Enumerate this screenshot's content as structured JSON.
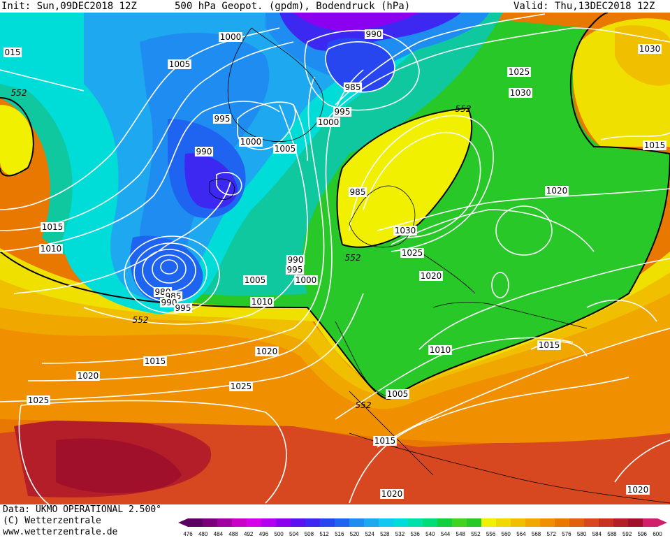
{
  "header": {
    "init": "Init: Sun,09DEC2018 12Z",
    "title": "500 hPa Geopot. (gpdm), Bodendruck (hPa)",
    "valid": "Valid: Thu,13DEC2018 12Z"
  },
  "footer": {
    "data_source": "Data: UKMO OPERATIONAL 2.500°",
    "copyright": "(C) Wetterzentrale",
    "url": "www.wetterzentrale.de"
  },
  "colorbar": {
    "ticks": [
      "476",
      "480",
      "484",
      "488",
      "492",
      "496",
      "500",
      "504",
      "508",
      "512",
      "516",
      "520",
      "524",
      "528",
      "532",
      "536",
      "540",
      "544",
      "548",
      "552",
      "556",
      "560",
      "564",
      "568",
      "572",
      "576",
      "580",
      "584",
      "588",
      "592",
      "596",
      "600"
    ],
    "colors": [
      "#5a0060",
      "#7a007a",
      "#a000a0",
      "#c800c8",
      "#d400e8",
      "#b400f0",
      "#8c00f0",
      "#5a10f0",
      "#3c28f0",
      "#2846f0",
      "#1e64f0",
      "#1e8cf0",
      "#1ea8f0",
      "#10c8f0",
      "#00dcd8",
      "#00e0a8",
      "#00dc78",
      "#10d040",
      "#40d420",
      "#28c828",
      "#f0f000",
      "#f0d800",
      "#f0c000",
      "#f0a800",
      "#f09000",
      "#e87800",
      "#e06010",
      "#d84820",
      "#c83020",
      "#b41e28",
      "#a0102a",
      "#d0206c"
    ]
  },
  "contour_labels": [
    {
      "text": "1000"
    },
    {
      "text": "990"
    },
    {
      "text": "015"
    },
    {
      "text": "1005"
    },
    {
      "text": "985"
    },
    {
      "text": "552"
    },
    {
      "text": "995"
    },
    {
      "text": "1000"
    },
    {
      "text": "552"
    },
    {
      "text": "1025"
    },
    {
      "text": "1030"
    },
    {
      "text": "1030"
    },
    {
      "text": "995"
    },
    {
      "text": "1000"
    },
    {
      "text": "1005"
    },
    {
      "text": "990"
    },
    {
      "text": "1015"
    },
    {
      "text": "1020"
    },
    {
      "text": "985"
    },
    {
      "text": "1030"
    },
    {
      "text": "1015"
    },
    {
      "text": "1025"
    },
    {
      "text": "552"
    },
    {
      "text": "990"
    },
    {
      "text": "1010"
    },
    {
      "text": "995"
    },
    {
      "text": "1000"
    },
    {
      "text": "1020"
    },
    {
      "text": "1005"
    },
    {
      "text": "980"
    },
    {
      "text": "985"
    },
    {
      "text": "990"
    },
    {
      "text": "995"
    },
    {
      "text": "1010"
    },
    {
      "text": "552"
    },
    {
      "text": "1010"
    },
    {
      "text": "1015"
    },
    {
      "text": "1020"
    },
    {
      "text": "1015"
    },
    {
      "text": "1020"
    },
    {
      "text": "1025"
    },
    {
      "text": "1005"
    },
    {
      "text": "1025"
    },
    {
      "text": "552"
    },
    {
      "text": "1015"
    },
    {
      "text": "1020"
    },
    {
      "text": "1020"
    }
  ]
}
